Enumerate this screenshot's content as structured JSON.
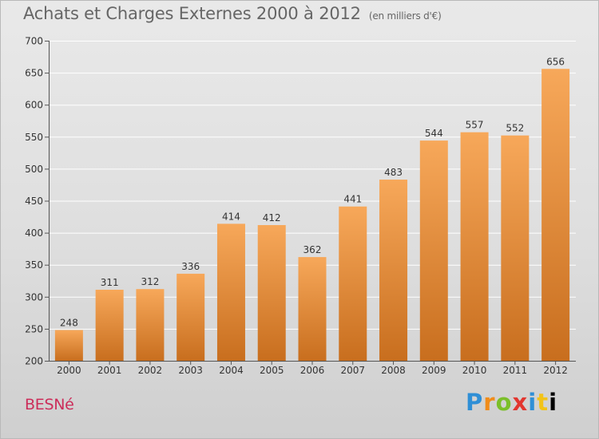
{
  "chart_data": {
    "type": "bar",
    "title": "Achats et Charges Externes 2000 à 2012",
    "subtitle": "(en milliers d'€)",
    "categories": [
      "2000",
      "2001",
      "2002",
      "2003",
      "2004",
      "2005",
      "2006",
      "2007",
      "2008",
      "2009",
      "2010",
      "2011",
      "2012"
    ],
    "values": [
      248,
      311,
      312,
      336,
      414,
      412,
      362,
      441,
      483,
      544,
      557,
      552,
      656
    ],
    "ylim": [
      200,
      700
    ],
    "yticks": [
      200,
      250,
      300,
      350,
      400,
      450,
      500,
      550,
      600,
      650,
      700
    ],
    "grid": true,
    "legend": "none",
    "colors": {
      "bar_light": "#f7a85a",
      "bar_dark": "#c86e1e",
      "grid": "#ffffff"
    }
  },
  "footer": {
    "commune": "BESNé",
    "brand_letters": [
      "P",
      "r",
      "o",
      "x",
      "i",
      "t",
      "i"
    ]
  }
}
